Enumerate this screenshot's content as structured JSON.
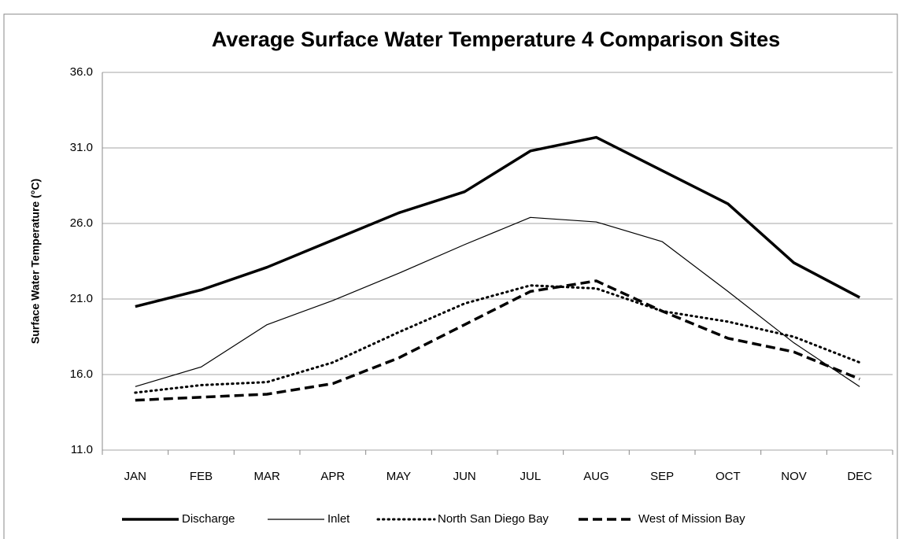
{
  "chart_data": {
    "type": "line",
    "title": "Average Surface Water Temperature 4 Comparison Sites",
    "y_label": "Surface Water Temperature (°C)",
    "categories": [
      "JAN",
      "FEB",
      "MAR",
      "APR",
      "MAY",
      "JUN",
      "JUL",
      "AUG",
      "SEP",
      "OCT",
      "NOV",
      "DEC"
    ],
    "series": [
      {
        "name": "Discharge",
        "color": "#000000",
        "style": "thick",
        "values": [
          20.5,
          21.6,
          23.1,
          24.9,
          26.7,
          28.1,
          30.8,
          31.7,
          29.5,
          27.3,
          23.4,
          21.1
        ]
      },
      {
        "name": "Inlet",
        "color": "#000000",
        "style": "thin",
        "values": [
          15.2,
          16.5,
          19.3,
          20.9,
          22.7,
          24.6,
          26.4,
          26.1,
          24.8,
          21.5,
          18.1,
          15.2
        ]
      },
      {
        "name": "North San Diego Bay",
        "color": "#000000",
        "style": "dotted",
        "values": [
          14.8,
          15.3,
          15.5,
          16.8,
          18.8,
          20.7,
          21.9,
          21.7,
          20.2,
          19.5,
          18.5,
          16.8
        ]
      },
      {
        "name": "West of Mission Bay",
        "color": "#000000",
        "style": "dashed",
        "values": [
          14.3,
          14.5,
          14.7,
          15.4,
          17.1,
          19.3,
          21.5,
          22.2,
          20.2,
          18.4,
          17.5,
          15.7
        ]
      }
    ],
    "ylim": [
      11,
      36
    ],
    "yticks": [
      {
        "value": 11,
        "label": "11.0"
      },
      {
        "value": 16,
        "label": "16.0"
      },
      {
        "value": 21,
        "label": "21.0"
      },
      {
        "value": 26,
        "label": "26.0"
      },
      {
        "value": 31,
        "label": "31.0"
      },
      {
        "value": 36,
        "label": "36.0"
      }
    ],
    "grid": true,
    "legend": "bottom"
  }
}
